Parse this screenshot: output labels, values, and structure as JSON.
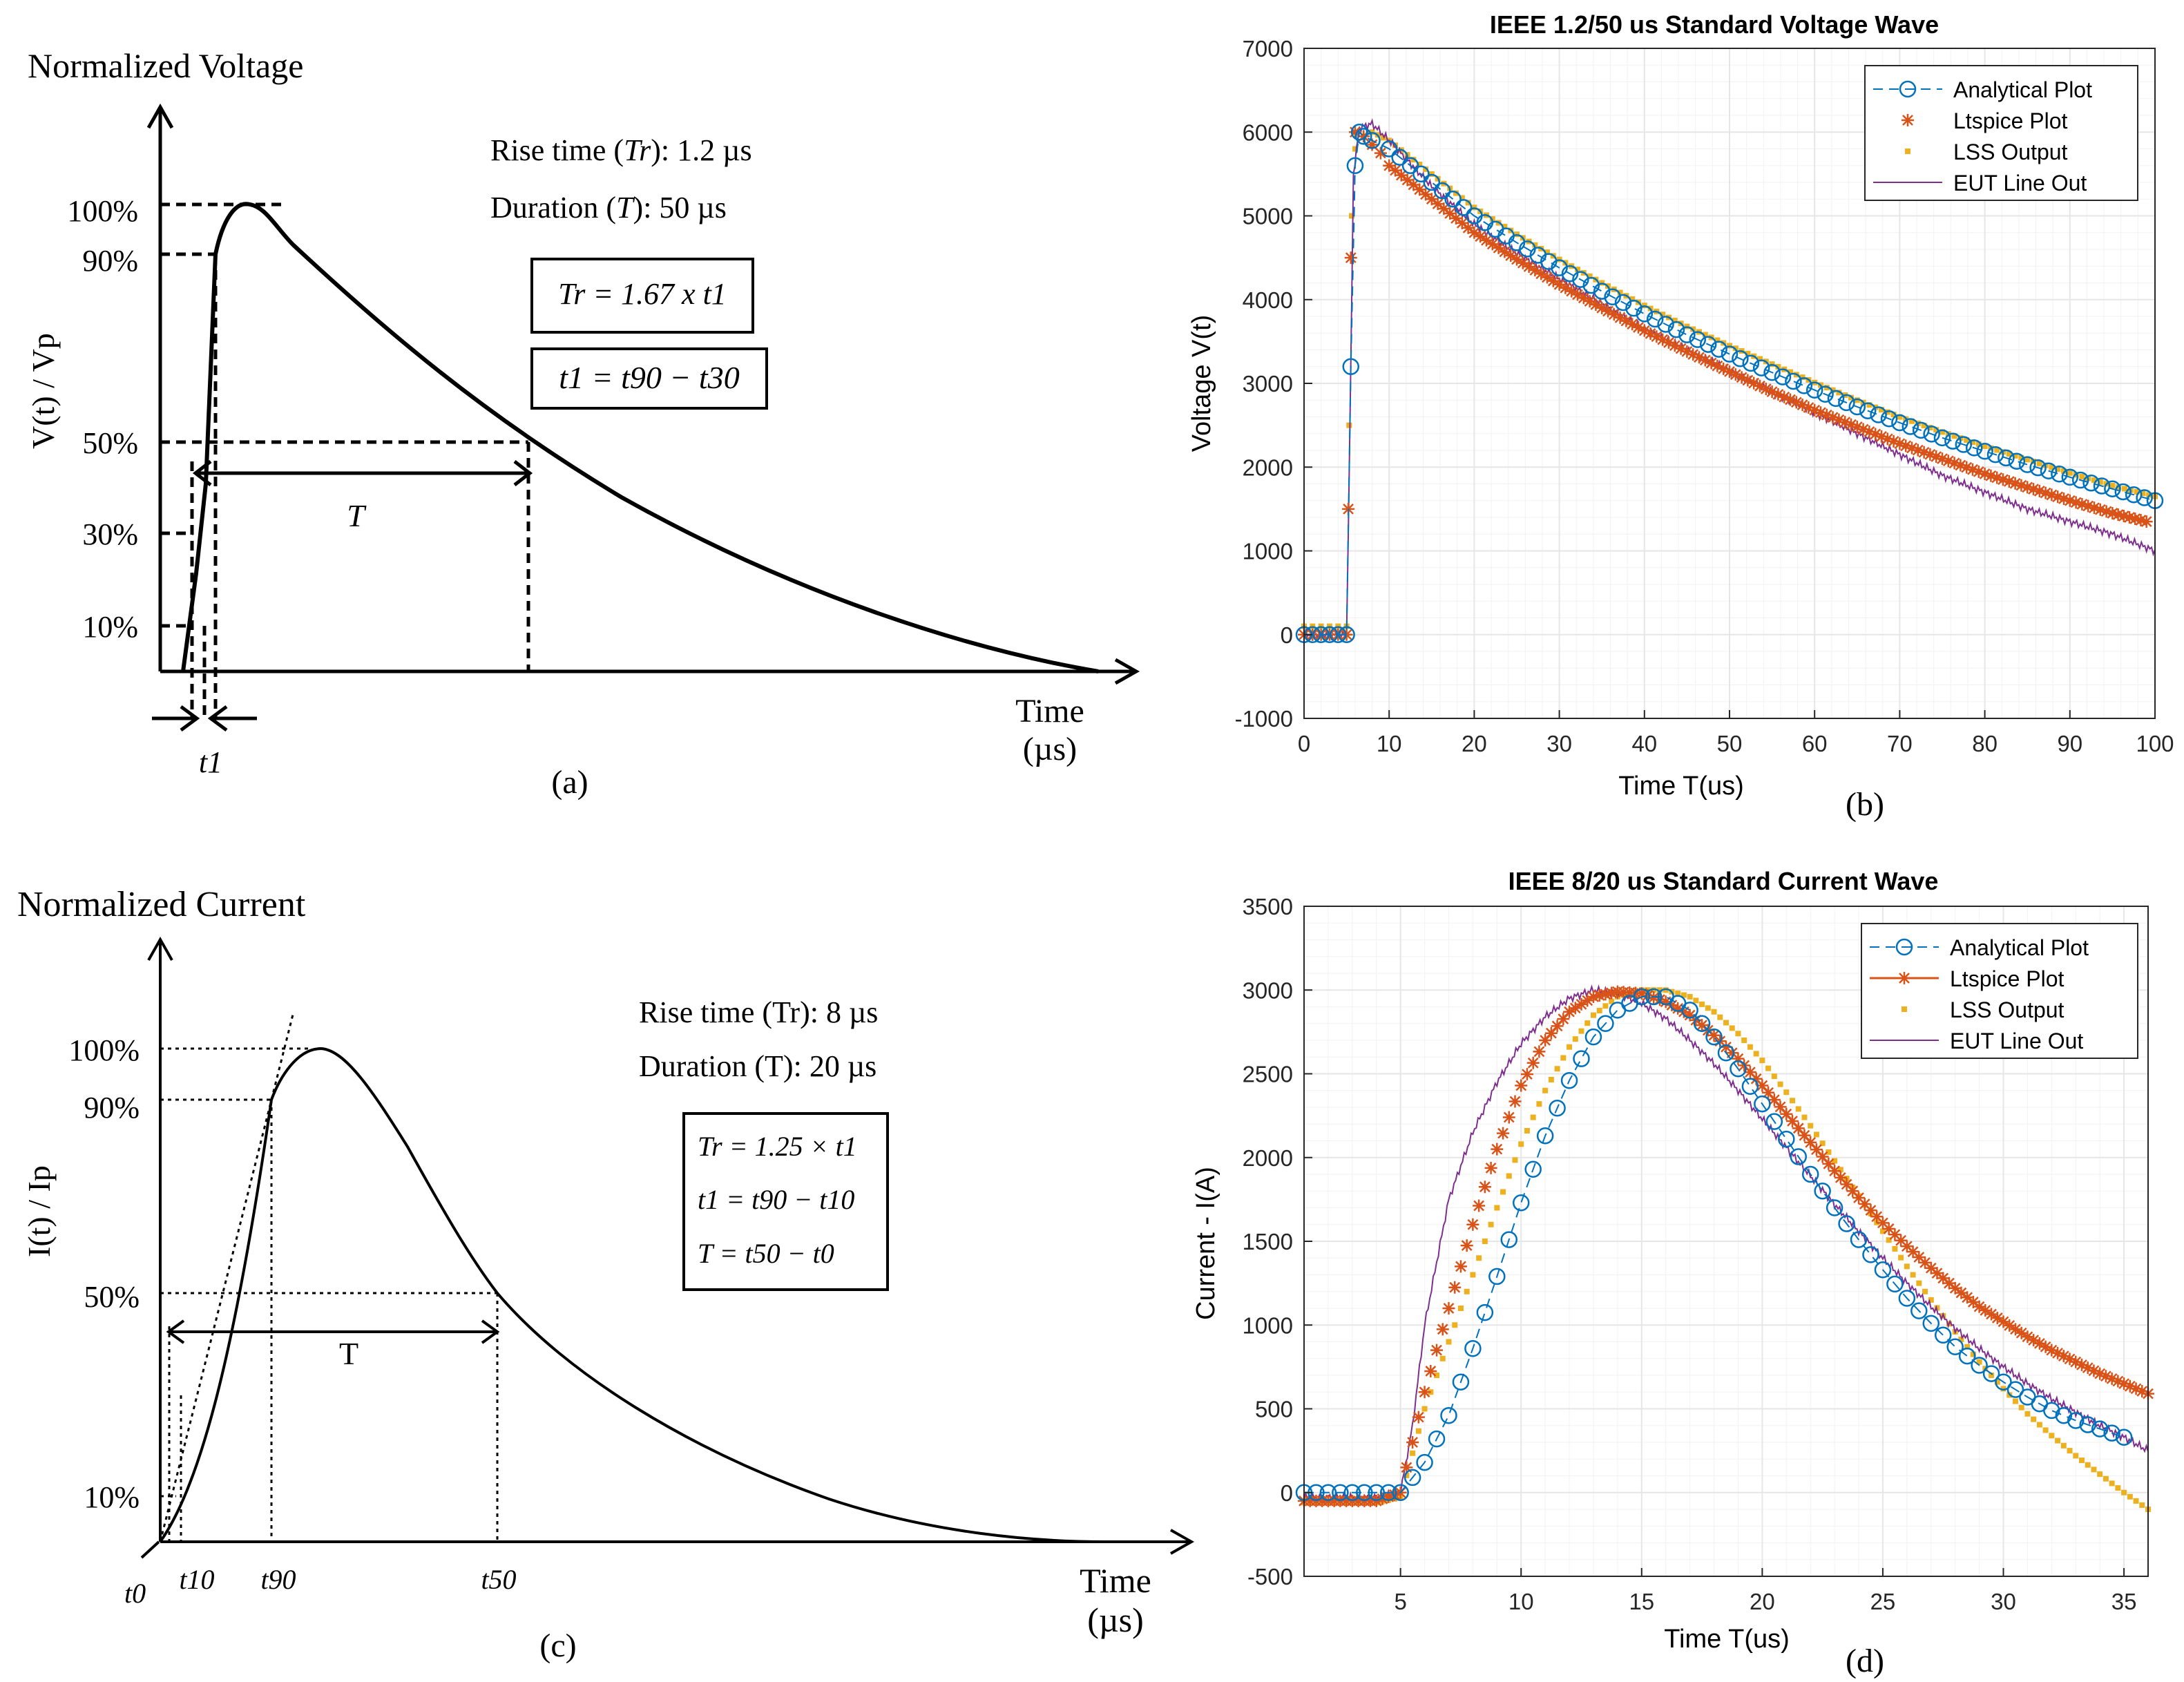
{
  "colors": {
    "analytical": "#0072BD",
    "ltspice": "#D95319",
    "lss": "#EDB120",
    "eut": "#7E2F8E",
    "grid": "#e6e6e6",
    "axis": "#262626"
  },
  "panel_a": {
    "ylabel_top": "Normalized Voltage",
    "ylabel_side": "V(t) / Vp",
    "yticks": [
      "100%",
      "90%",
      "50%",
      "30%",
      "10%"
    ],
    "xlabel_1": "Time",
    "xlabel_2": "(µs)",
    "rise": "Rise time (",
    "rise_sym": "Tr",
    "rise_val": "): 1.2 µs",
    "dur": "Duration (",
    "dur_sym": "T",
    "dur_val": "): 50 µs",
    "box1": "Tr = 1.67 x t1",
    "box2": "t1 = t90 − t30",
    "T_label": "T",
    "t1_label": "t1",
    "caption": "(a)"
  },
  "panel_c": {
    "ylabel_top": "Normalized Current",
    "ylabel_side": "I(t) / Ip",
    "yticks": [
      "100%",
      "90%",
      "50%",
      "10%"
    ],
    "xlabel_1": "Time",
    "xlabel_2": "(µs)",
    "rise": "Rise time (Tr): 8 µs",
    "dur": "Duration (T): 20 µs",
    "box_lines": [
      "Tr = 1.25 × t1",
      "t1 = t90 − t10",
      "T = t50 − t0"
    ],
    "T_label": "T",
    "t_labels": [
      "t0",
      "t10",
      "t90",
      "t50"
    ],
    "caption": "(c)"
  },
  "chart_data": [
    {
      "id": "b",
      "type": "line",
      "title": "IEEE 1.2/50 us Standard Voltage Wave",
      "xlabel": "Time T(us)",
      "ylabel": "Voltage V(t)",
      "xlim": [
        0,
        100
      ],
      "ylim": [
        -1000,
        7000
      ],
      "xticks": [
        0,
        10,
        20,
        30,
        40,
        50,
        60,
        70,
        80,
        90,
        100
      ],
      "yticks": [
        -1000,
        0,
        1000,
        2000,
        3000,
        4000,
        5000,
        6000,
        7000
      ],
      "grid": true,
      "legend_position": "top-right",
      "caption": "(b)",
      "series": [
        {
          "name": "Analytical Plot",
          "marker": "circle",
          "x": [
            0,
            1,
            2,
            3,
            4,
            5,
            5.5,
            6,
            6.5,
            7,
            8,
            10,
            15,
            20,
            25,
            30,
            35,
            40,
            45,
            50,
            55,
            60,
            65,
            70,
            75,
            80,
            85,
            90,
            95,
            100
          ],
          "y": [
            0,
            0,
            0,
            0,
            0,
            0,
            3200,
            5600,
            6000,
            5950,
            5900,
            5800,
            5400,
            5000,
            4680,
            4380,
            4100,
            3830,
            3580,
            3350,
            3130,
            2920,
            2720,
            2530,
            2350,
            2190,
            2030,
            1880,
            1740,
            1600
          ]
        },
        {
          "name": "Ltspice Plot",
          "marker": "star",
          "x": [
            0,
            1,
            2,
            3,
            4,
            5,
            5.2,
            5.5,
            6,
            7,
            8,
            9,
            10,
            15,
            20,
            25,
            30,
            35,
            40,
            45,
            50,
            55,
            60,
            65,
            70,
            75,
            80,
            85,
            90,
            95,
            99
          ],
          "y": [
            0,
            0,
            0,
            0,
            0,
            0,
            1500,
            4500,
            6000,
            5950,
            5850,
            5750,
            5600,
            5200,
            4800,
            4480,
            4180,
            3900,
            3630,
            3380,
            3140,
            2900,
            2680,
            2480,
            2280,
            2100,
            1920,
            1760,
            1600,
            1450,
            1350
          ]
        },
        {
          "name": "LSS Output",
          "marker": "dot",
          "x": [
            0,
            1,
            2,
            3,
            4,
            5,
            5.3,
            5.6,
            6,
            7,
            8,
            10,
            15,
            20,
            25,
            30,
            35,
            40,
            45,
            50,
            55,
            60,
            65,
            70,
            75,
            80,
            85,
            90,
            95,
            100
          ],
          "y": [
            100,
            100,
            100,
            100,
            100,
            100,
            2500,
            5000,
            5800,
            5950,
            6000,
            5900,
            5500,
            5100,
            4780,
            4480,
            4200,
            3930,
            3680,
            3450,
            3230,
            3010,
            2800,
            2600,
            2420,
            2250,
            2090,
            1930,
            1780,
            1650
          ]
        },
        {
          "name": "EUT Line Out",
          "marker": "line",
          "x": [
            0,
            2,
            4,
            5,
            5.4,
            5.8,
            6.5,
            8,
            10,
            15,
            20,
            25,
            30,
            35,
            40,
            45,
            50,
            55,
            60,
            65,
            70,
            75,
            80,
            85,
            90,
            95,
            100
          ],
          "y": [
            0,
            0,
            0,
            0,
            2500,
            5500,
            6050,
            6100,
            5900,
            5350,
            4900,
            4550,
            4250,
            3950,
            3650,
            3400,
            3150,
            2900,
            2650,
            2400,
            2150,
            1900,
            1700,
            1500,
            1350,
            1200,
            1000
          ]
        }
      ]
    },
    {
      "id": "d",
      "type": "line",
      "title": "IEEE 8/20 us Standard Current Wave",
      "xlabel": "Time T(us)",
      "ylabel": "Current - I(A)",
      "xlim": [
        1,
        36
      ],
      "ylim": [
        -500,
        3500
      ],
      "xticks": [
        5,
        10,
        15,
        20,
        25,
        30,
        35
      ],
      "yticks": [
        -500,
        0,
        500,
        1000,
        1500,
        2000,
        2500,
        3000,
        3500
      ],
      "grid": true,
      "legend_position": "top-right",
      "caption": "(d)",
      "series": [
        {
          "name": "Analytical Plot",
          "marker": "circle",
          "x": [
            1,
            2,
            3,
            4,
            5,
            6,
            7,
            8,
            9,
            10,
            11,
            12,
            13,
            14,
            15,
            16,
            17,
            18,
            19,
            20,
            21,
            22,
            23,
            24,
            25,
            26,
            27,
            28,
            29,
            30,
            31,
            32,
            33,
            34,
            35
          ],
          "y": [
            0,
            0,
            0,
            0,
            0,
            180,
            460,
            860,
            1290,
            1730,
            2130,
            2460,
            2720,
            2880,
            2960,
            2960,
            2880,
            2720,
            2530,
            2320,
            2110,
            1900,
            1700,
            1510,
            1330,
            1160,
            1010,
            870,
            760,
            660,
            570,
            490,
            430,
            380,
            330
          ]
        },
        {
          "name": "Ltspice Plot",
          "marker": "star",
          "x": [
            1,
            2,
            3,
            4,
            5,
            6,
            7,
            8,
            9,
            10,
            11,
            12,
            13,
            14,
            15,
            16,
            17,
            18,
            19,
            20,
            21,
            22,
            23,
            24,
            25,
            26,
            27,
            28,
            29,
            30,
            31,
            32,
            33,
            34,
            35,
            36
          ],
          "y": [
            -50,
            -50,
            -50,
            -50,
            0,
            600,
            1100,
            1600,
            2050,
            2430,
            2700,
            2870,
            2960,
            2990,
            2980,
            2930,
            2850,
            2730,
            2590,
            2430,
            2260,
            2090,
            1920,
            1760,
            1610,
            1470,
            1340,
            1220,
            1110,
            1020,
            930,
            850,
            780,
            710,
            650,
            590
          ]
        },
        {
          "name": "LSS Output",
          "marker": "dot",
          "x": [
            1,
            2,
            3,
            4,
            5,
            6,
            7,
            8,
            9,
            10,
            11,
            12,
            13,
            14,
            15,
            16,
            17,
            18,
            19,
            20,
            21,
            22,
            23,
            24,
            25,
            26,
            27,
            28,
            29,
            30,
            31,
            32,
            33,
            34,
            35,
            36
          ],
          "y": [
            -60,
            -60,
            -60,
            -60,
            -30,
            500,
            900,
            1300,
            1700,
            2080,
            2400,
            2660,
            2850,
            2960,
            3000,
            3000,
            2960,
            2870,
            2740,
            2580,
            2390,
            2190,
            1980,
            1770,
            1560,
            1350,
            1150,
            960,
            780,
            620,
            470,
            340,
            220,
            110,
            0,
            -100
          ]
        },
        {
          "name": "EUT Line Out",
          "marker": "line",
          "x": [
            1,
            2,
            3,
            4,
            5,
            5.5,
            6,
            7,
            8,
            9,
            10,
            11,
            12,
            13,
            14,
            15,
            16,
            17,
            18,
            19,
            20,
            21,
            22,
            23,
            24,
            25,
            26,
            27,
            28,
            29,
            30,
            31,
            32,
            33,
            34,
            35,
            36
          ],
          "y": [
            -30,
            -30,
            -30,
            -30,
            0,
            400,
            1000,
            1750,
            2150,
            2450,
            2680,
            2840,
            2950,
            3000,
            2980,
            2920,
            2830,
            2700,
            2560,
            2400,
            2230,
            2060,
            1890,
            1720,
            1560,
            1400,
            1250,
            1110,
            980,
            860,
            750,
            650,
            560,
            480,
            400,
            330,
            250
          ]
        }
      ]
    }
  ]
}
